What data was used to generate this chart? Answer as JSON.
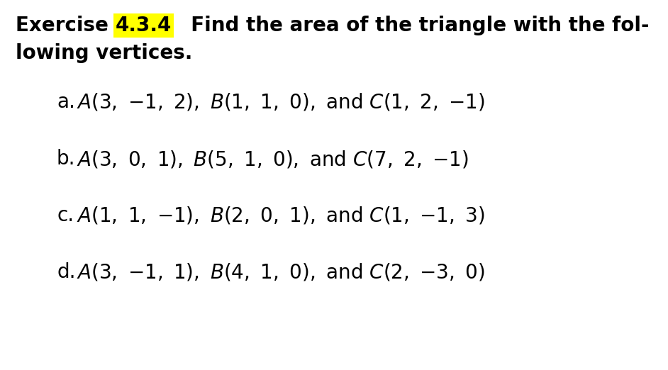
{
  "bg_color": "#ffffff",
  "title_fontsize": 20,
  "item_fontsize": 20,
  "items": [
    {
      "label": "a.",
      "math": "$A(3,\\ {-1},\\ 2),\\ B(1,\\ 1,\\ 0),\\ \\mathrm{and}\\ C(1,\\ 2,\\ {-1})$"
    },
    {
      "label": "b.",
      "math": "$A(3,\\ 0,\\ 1),\\ B(5,\\ 1,\\ 0),\\ \\mathrm{and}\\ C(7,\\ 2,\\ {-1})$"
    },
    {
      "label": "c.",
      "math": "$A(1,\\ 1,\\ {-1}),\\ B(2,\\ 0,\\ 1),\\ \\mathrm{and}\\ C(1,\\ {-1},\\ 3)$"
    },
    {
      "label": "d.",
      "math": "$A(3,\\ {-1},\\ 1),\\ B(4,\\ 1,\\ 0),\\ \\mathrm{and}\\ C(2,\\ {-3},\\ 0)$"
    }
  ],
  "highlight_color": "#ffff00"
}
